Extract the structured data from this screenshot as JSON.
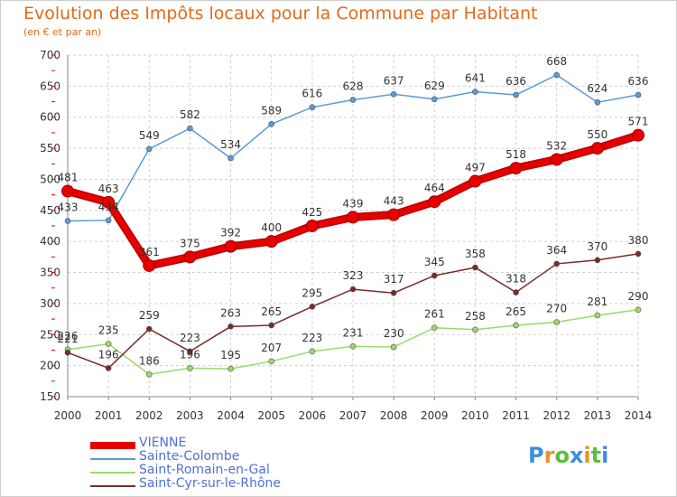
{
  "chart_data": {
    "type": "line",
    "title": "Evolution des Impôts locaux pour la Commune par Habitant",
    "subtitle": "(en € et par an)",
    "x": [
      "2000",
      "2001",
      "2002",
      "2003",
      "2004",
      "2005",
      "2006",
      "2007",
      "2008",
      "2009",
      "2010",
      "2011",
      "2012",
      "2013",
      "2014"
    ],
    "ylim": [
      150,
      700
    ],
    "yticks": [
      150,
      200,
      250,
      300,
      350,
      400,
      450,
      500,
      550,
      600,
      650,
      700
    ],
    "grid": true,
    "legend_position": "bottom-left",
    "series": [
      {
        "name": "VIENNE",
        "color": "#e80000",
        "values": [
          481,
          463,
          361,
          375,
          392,
          400,
          425,
          439,
          443,
          464,
          497,
          518,
          532,
          550,
          571
        ]
      },
      {
        "name": "Sainte-Colombe",
        "color": "#5b9bd5",
        "values": [
          433,
          434,
          549,
          582,
          534,
          589,
          616,
          628,
          637,
          629,
          641,
          636,
          668,
          624,
          636
        ]
      },
      {
        "name": "Saint-Romain-en-Gal",
        "color": "#9ada6a",
        "values": [
          226,
          235,
          186,
          196,
          195,
          207,
          223,
          231,
          230,
          261,
          258,
          265,
          270,
          281,
          290
        ]
      },
      {
        "name": "Saint-Cyr-sur-le-Rhône",
        "color": "#7a2a2a",
        "values": [
          221,
          196,
          259,
          223,
          263,
          265,
          295,
          323,
          317,
          345,
          358,
          318,
          364,
          370,
          380
        ]
      }
    ]
  },
  "logo": {
    "text": "Proxiti",
    "colors": [
      "#3d8ee0",
      "#e8922a",
      "#5cbf3a",
      "#3d8ee0",
      "#e8922a",
      "#5cbf3a",
      "#3d8ee0"
    ]
  }
}
